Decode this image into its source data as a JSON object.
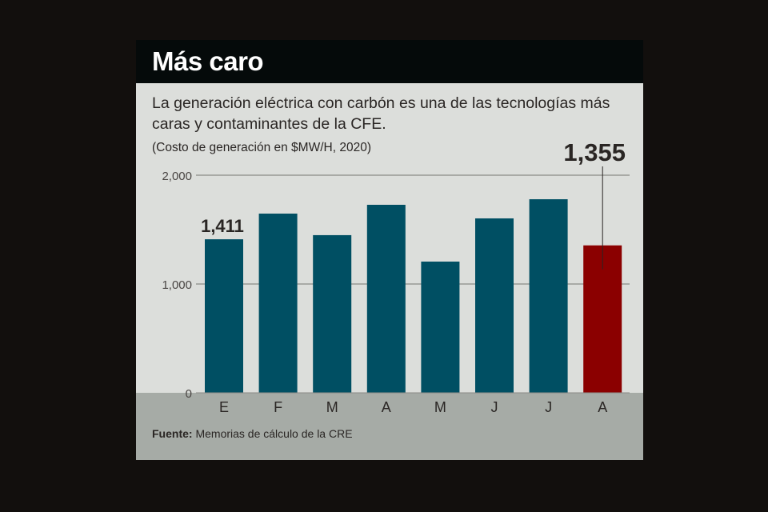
{
  "header": {
    "title": "Más caro"
  },
  "subtitle": "La generación eléctrica con carbón es una de las tecnologías más caras y contaminantes de la CFE.",
  "units": "(Costo de generación en $MW/H, 2020)",
  "source": {
    "label": "Fuente:",
    "text": " Memorias de cálculo de la CRE"
  },
  "colors": {
    "bar": "#004f63",
    "highlight": "#8b0000",
    "title_bg": "#050a0a",
    "panel": "#dcdedb",
    "band": "#a6aba6"
  },
  "chart_data": {
    "type": "bar",
    "title": "Más caro",
    "ylabel": "Costo de generación en $MW/H, 2020",
    "categories": [
      "E",
      "F",
      "M",
      "A",
      "M",
      "J",
      "J",
      "A"
    ],
    "values": [
      1411,
      1647,
      1449,
      1728,
      1206,
      1603,
      1779,
      1355
    ],
    "highlight_index": 7,
    "data_labels": [
      {
        "index": 0,
        "text": "1,411"
      },
      {
        "index": 7,
        "text": "1,355"
      }
    ],
    "yticks": [
      {
        "value": 0,
        "label": "0"
      },
      {
        "value": 1000,
        "label": "1,000"
      },
      {
        "value": 2000,
        "label": "2,000"
      }
    ],
    "ylim": [
      0,
      2000
    ],
    "grid": true
  }
}
